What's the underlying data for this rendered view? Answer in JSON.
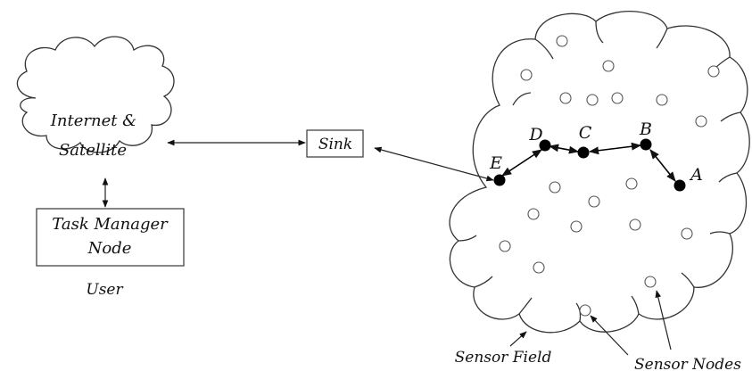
{
  "labels": {
    "internet": [
      "Internet &",
      "Satellite"
    ],
    "task_manager": [
      "Task Manager",
      "Node"
    ],
    "user": "User",
    "sink": "Sink",
    "sensor_field": "Sensor Field",
    "sensor_nodes": "Sensor Nodes"
  },
  "route_nodes": [
    {
      "id": "E",
      "label": "E"
    },
    {
      "id": "D",
      "label": "D"
    },
    {
      "id": "C",
      "label": "C"
    },
    {
      "id": "B",
      "label": "B"
    },
    {
      "id": "A",
      "label": "A"
    }
  ],
  "colors": {
    "line": "#222222",
    "active_node": "#000000",
    "idle_node": "#ffffff"
  }
}
